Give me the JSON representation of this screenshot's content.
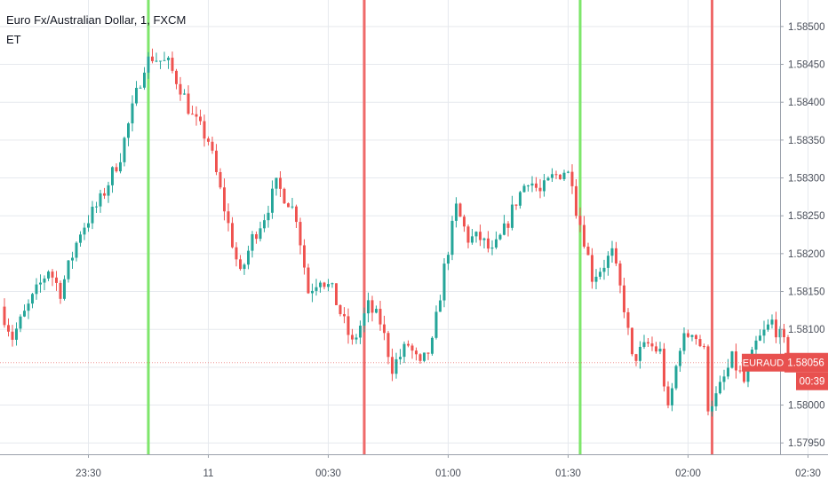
{
  "legend": {
    "title": "Euro Fx/Australian Dollar, 1, FXCM",
    "indicator": "ET"
  },
  "price_badge": {
    "symbol": "EURAUD",
    "price": "1.58056",
    "countdown": "00:39",
    "color": "#e8514f"
  },
  "colors": {
    "up": "#26a69a",
    "down": "#ef5350",
    "green_signal": "#7ee66b",
    "red_signal": "#ef6a6a",
    "grid": "#e6e9ee"
  },
  "chart_data": {
    "type": "candlestick",
    "symbol": "EURAUD",
    "ylim": [
      1.57935,
      1.58535
    ],
    "yticks": [
      1.5795,
      1.58,
      1.5805,
      1.581,
      1.5815,
      1.582,
      1.5825,
      1.583,
      1.5835,
      1.584,
      1.5845,
      1.585
    ],
    "ytick_labels": [
      "1.57950",
      "1.58000",
      "1.58050",
      "1.58100",
      "1.58150",
      "1.58200",
      "1.58250",
      "1.58300",
      "1.58350",
      "1.58400",
      "1.58450",
      "1.58500"
    ],
    "xticks": [
      {
        "label": "23:30",
        "bar": 21
      },
      {
        "label": "11",
        "bar": 51
      },
      {
        "label": "00:30",
        "bar": 81
      },
      {
        "label": "01:00",
        "bar": 111
      },
      {
        "label": "01:30",
        "bar": 141
      },
      {
        "label": "02:00",
        "bar": 171
      },
      {
        "label": "02:30",
        "bar": 201
      }
    ],
    "signal_lines": [
      {
        "bar": 36,
        "color": "green"
      },
      {
        "bar": 90,
        "color": "red"
      },
      {
        "bar": 144,
        "color": "green"
      },
      {
        "bar": 177,
        "color": "red"
      }
    ],
    "path_points": [
      [
        0,
        1.5813
      ],
      [
        3,
        1.5809
      ],
      [
        8,
        1.5814
      ],
      [
        12,
        1.5818
      ],
      [
        15,
        1.5815
      ],
      [
        20,
        1.5823
      ],
      [
        25,
        1.5827
      ],
      [
        30,
        1.5833
      ],
      [
        33,
        1.5839
      ],
      [
        36,
        1.5845
      ],
      [
        38,
        1.5846
      ],
      [
        42,
        1.5845
      ],
      [
        45,
        1.5842
      ],
      [
        48,
        1.5838
      ],
      [
        52,
        1.5835
      ],
      [
        56,
        1.5826
      ],
      [
        60,
        1.5817
      ],
      [
        63,
        1.5822
      ],
      [
        66,
        1.5825
      ],
      [
        69,
        1.5829
      ],
      [
        72,
        1.5827
      ],
      [
        74,
        1.5825
      ],
      [
        77,
        1.5815
      ],
      [
        80,
        1.5817
      ],
      [
        83,
        1.5815
      ],
      [
        88,
        1.5808
      ],
      [
        92,
        1.5813
      ],
      [
        95,
        1.5811
      ],
      [
        98,
        1.5805
      ],
      [
        102,
        1.5808
      ],
      [
        105,
        1.5805
      ],
      [
        108,
        1.5808
      ],
      [
        111,
        1.5818
      ],
      [
        114,
        1.5826
      ],
      [
        117,
        1.5822
      ],
      [
        120,
        1.5822
      ],
      [
        123,
        1.582
      ],
      [
        126,
        1.5823
      ],
      [
        129,
        1.5827
      ],
      [
        132,
        1.583
      ],
      [
        135,
        1.5828
      ],
      [
        138,
        1.583
      ],
      [
        141,
        1.5831
      ],
      [
        143,
        1.583
      ],
      [
        144,
        1.5826
      ],
      [
        146,
        1.5822
      ],
      [
        148,
        1.5817
      ],
      [
        150,
        1.5818
      ],
      [
        153,
        1.582
      ],
      [
        156,
        1.5813
      ],
      [
        158,
        1.5806
      ],
      [
        162,
        1.5808
      ],
      [
        165,
        1.5807
      ],
      [
        167,
        1.5799
      ],
      [
        170,
        1.5808
      ],
      [
        173,
        1.581
      ],
      [
        176,
        1.5807
      ],
      [
        177,
        1.58
      ],
      [
        179,
        1.5801
      ],
      [
        183,
        1.5806
      ],
      [
        186,
        1.5803
      ],
      [
        189,
        1.5808
      ],
      [
        193,
        1.5811
      ],
      [
        196,
        1.5808
      ]
    ],
    "last_price": 1.58056,
    "bar_count": 197
  }
}
